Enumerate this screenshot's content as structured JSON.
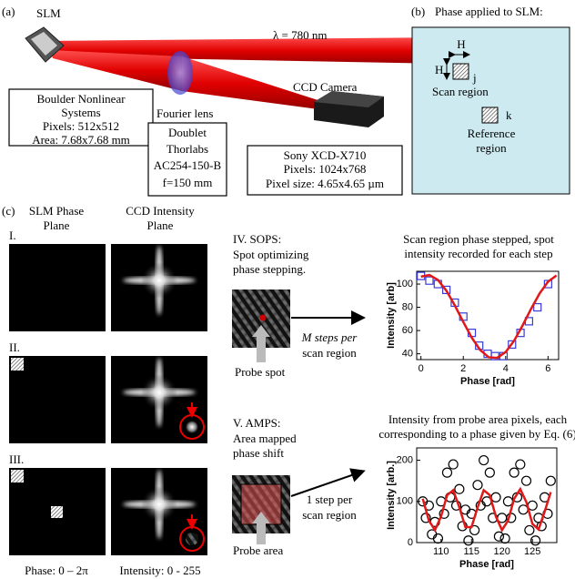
{
  "panel_a": {
    "label": "(a)",
    "slm": "SLM",
    "wavelength": "λ = 780 nm",
    "slm_box": [
      "Boulder Nonlinear",
      "Systems",
      "Pixels: 512x512",
      "Area: 7.68x7.68 mm"
    ],
    "lens": "Fourier lens",
    "lens_box": [
      "Doublet",
      "Thorlabs",
      "AC254-150-B",
      "f=150 mm"
    ],
    "camera": "CCD Camera",
    "camera_box": [
      "Sony XCD-X710",
      "Pixels: 1024x768",
      "Pixel size: 4.65x4.65 µm"
    ]
  },
  "panel_b": {
    "label": "(b)",
    "title": "Phase applied to SLM:",
    "h_top": "H",
    "h_side": "H",
    "j": "j",
    "scan": "Scan region",
    "k": "k",
    "reference": [
      "Reference",
      "region"
    ]
  },
  "panel_c": {
    "label": "(c)",
    "slm_plane": [
      "SLM Phase",
      "Plane"
    ],
    "ccd_plane": [
      "CCD Intensity",
      "Plane"
    ],
    "rows": [
      "I.",
      "II.",
      "III."
    ],
    "phase_range": "Phase: 0 – 2π",
    "intensity_range": "Intensity: 0 - 255",
    "sops": [
      "IV. SOPS:",
      "Spot optimizing",
      "phase stepping."
    ],
    "sops_arrow": [
      "M steps per",
      "scan region"
    ],
    "probe_spot": "Probe spot",
    "amps": [
      "V. AMPS:",
      "Area mapped",
      "phase shift"
    ],
    "amps_arrow": [
      "1 step per",
      "scan region"
    ],
    "probe_area": "Probe area"
  },
  "chart_data": [
    {
      "type": "scatter",
      "title": [
        "Scan region phase stepped, spot",
        "intensity recorded for each step"
      ],
      "x_label": "Phase [rad]",
      "y_label": "Intensity [arb]",
      "xlim": [
        -0.2,
        6.5
      ],
      "ylim": [
        35,
        111
      ],
      "xticks": [
        0,
        2,
        4,
        6
      ],
      "yticks": [
        40,
        60,
        80,
        100
      ],
      "series": [
        {
          "marker": "square",
          "color": "#3a3ad8",
          "x": [
            0,
            0.4,
            0.8,
            1.2,
            1.6,
            2.0,
            2.4,
            2.75,
            3.15,
            3.5,
            3.9,
            4.3,
            4.7,
            5.1,
            5.5,
            6.0
          ],
          "values": [
            107,
            103,
            100,
            95,
            84,
            72,
            58,
            47,
            40,
            38,
            38,
            48,
            58,
            68,
            80,
            100
          ]
        },
        {
          "marker": "line",
          "color": "#e01818",
          "x": [
            0,
            0.4,
            0.8,
            1.2,
            1.6,
            2.0,
            2.4,
            2.8,
            3.2,
            3.6,
            4.0,
            4.4,
            4.8,
            5.2,
            5.6,
            6.0,
            6.4
          ],
          "values": [
            106.4,
            107.8,
            103.6,
            94.4,
            81.6,
            67.4,
            53.8,
            43.2,
            37.0,
            36.5,
            41.5,
            51.3,
            64.4,
            78.7,
            91.9,
            102.1,
            107.4
          ]
        }
      ]
    },
    {
      "type": "scatter",
      "title": [
        "Intensity from probe area pixels, each",
        "corresponding to a phase given by Eq. (6)"
      ],
      "x_label": "Phase [rad]",
      "y_label": "Intensity [arb.]",
      "xlim": [
        106,
        129
      ],
      "ylim": [
        0,
        230
      ],
      "xticks": [
        110,
        115,
        120,
        125
      ],
      "yticks": [
        0,
        100,
        200
      ],
      "series": [
        {
          "marker": "circle",
          "color": "#000000",
          "x": [
            107,
            107.5,
            108,
            108.5,
            109,
            109.5,
            110,
            110.5,
            111,
            111.5,
            112,
            112.5,
            113,
            113.5,
            114,
            114.5,
            115,
            115.5,
            116,
            116.5,
            117,
            117.5,
            118,
            118.5,
            119,
            119.5,
            120,
            120.5,
            121,
            121.5,
            122,
            122.5,
            123,
            123.5,
            124,
            124.5,
            125,
            125.5,
            126,
            126.5,
            127,
            127.5,
            128
          ],
          "values": [
            100,
            60,
            90,
            20,
            50,
            10,
            100,
            70,
            170,
            110,
            190,
            90,
            130,
            40,
            80,
            5,
            70,
            30,
            140,
            90,
            200,
            100,
            170,
            60,
            110,
            15,
            60,
            10,
            100,
            60,
            170,
            110,
            190,
            80,
            150,
            30,
            90,
            5,
            60,
            40,
            110,
            70,
            150
          ]
        },
        {
          "marker": "line",
          "color": "#e01818",
          "x": [
            107,
            108,
            109,
            110,
            111,
            112,
            113,
            114,
            115,
            116,
            117,
            118,
            119,
            120,
            121,
            122,
            123,
            124,
            125,
            126,
            127,
            128
          ],
          "values": [
            106.5,
            53.5,
            30.3,
            63.5,
            115.4,
            127.2,
            85.6,
            37.6,
            37.6,
            85.4,
            127.3,
            115.3,
            63.5,
            30.3,
            53.7,
            106.5,
            129.9,
            98.5,
            45.5,
            32,
            75,
            122.5
          ]
        }
      ]
    }
  ]
}
